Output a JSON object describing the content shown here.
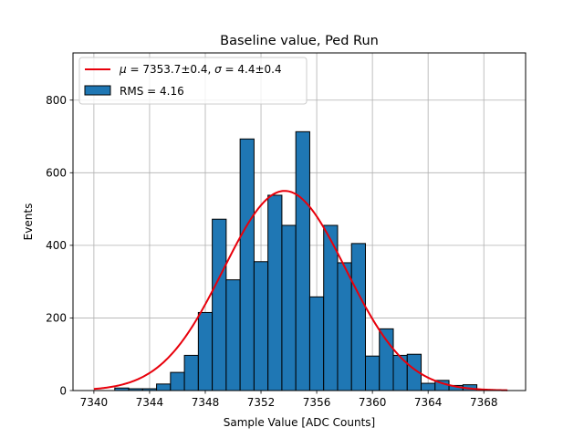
{
  "chart_data": {
    "type": "bar",
    "title": "Baseline value, Ped Run",
    "xlabel": "Sample Value [ADC Counts]",
    "ylabel": "Events",
    "xlim": [
      7338.5,
      7371
    ],
    "ylim": [
      0,
      930
    ],
    "grid": true,
    "legend_position": "top-left",
    "xticks": [
      7340,
      7344,
      7348,
      7352,
      7356,
      7360,
      7364,
      7368
    ],
    "yticks": [
      0,
      200,
      400,
      600,
      800
    ],
    "histogram": {
      "label": "RMS = 4.16",
      "color": "#1f77b4",
      "bin_width": 1.0,
      "bin_edges_start": 7341.5,
      "counts": [
        7,
        5,
        5,
        18,
        50,
        97,
        215,
        472,
        305,
        693,
        355,
        538,
        455,
        713,
        258,
        455,
        352,
        405,
        95,
        170,
        97,
        100,
        20,
        28,
        14,
        16
      ]
    },
    "fit": {
      "label_mu_symbol": "μ",
      "label_sigma_symbol": "σ",
      "label_mu_text": " = 7353.7±0.4, ",
      "label_sigma_text": " = 4.4±0.4",
      "mu": 7353.7,
      "sigma": 4.4,
      "amplitude": 550,
      "x_range": [
        7340,
        7369.7
      ],
      "color": "#e8000b"
    }
  }
}
